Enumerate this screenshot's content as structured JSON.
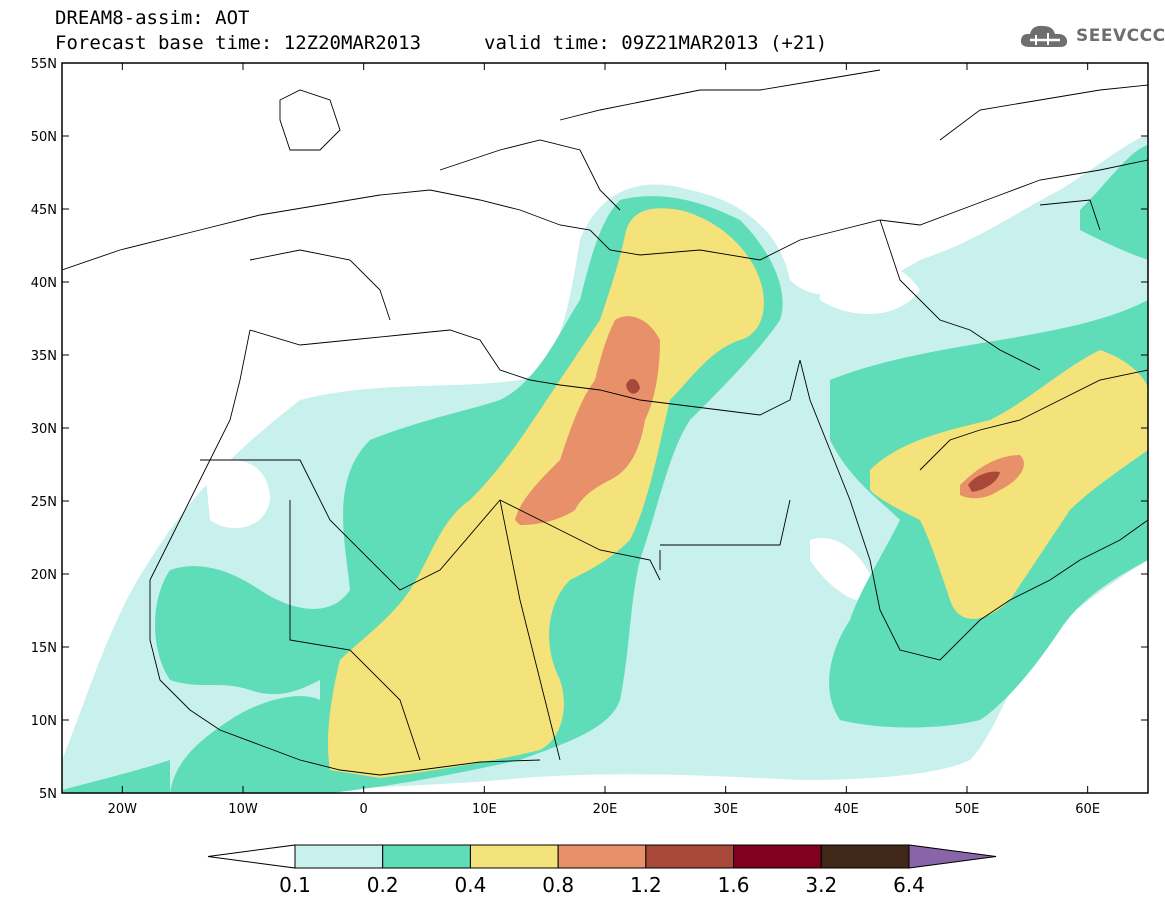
{
  "header": {
    "title": "DREAM8-assim: AOT",
    "base_time": "Forecast base time: 12Z20MAR2013",
    "valid_time": "valid time: 09Z21MAR2013 (+21)",
    "logo_text": "SEEVCCC"
  },
  "map": {
    "lon_range": [
      -25,
      65
    ],
    "lat_range": [
      5,
      55
    ],
    "lat_ticks": [
      {
        "value": 55,
        "label": "55N"
      },
      {
        "value": 50,
        "label": "50N"
      },
      {
        "value": 45,
        "label": "45N"
      },
      {
        "value": 40,
        "label": "40N"
      },
      {
        "value": 35,
        "label": "35N"
      },
      {
        "value": 30,
        "label": "30N"
      },
      {
        "value": 25,
        "label": "25N"
      },
      {
        "value": 20,
        "label": "20N"
      },
      {
        "value": 15,
        "label": "15N"
      },
      {
        "value": 10,
        "label": "10N"
      },
      {
        "value": 5,
        "label": "5N"
      }
    ],
    "lon_ticks": [
      {
        "value": -20,
        "label": "20W"
      },
      {
        "value": -10,
        "label": "10W"
      },
      {
        "value": 0,
        "label": "0"
      },
      {
        "value": 10,
        "label": "10E"
      },
      {
        "value": 20,
        "label": "20E"
      },
      {
        "value": 30,
        "label": "30E"
      },
      {
        "value": 40,
        "label": "40E"
      },
      {
        "value": 50,
        "label": "50E"
      },
      {
        "value": 60,
        "label": "60E"
      }
    ]
  },
  "colorbar": {
    "levels": [
      "0.1",
      "0.2",
      "0.4",
      "0.8",
      "1.2",
      "1.6",
      "3.2",
      "6.4"
    ],
    "colors": [
      "#ffffff",
      "#c8f0ec",
      "#5fdcb8",
      "#f4e27a",
      "#e8906a",
      "#a84838",
      "#800020",
      "#402818",
      "#8a64a8"
    ]
  },
  "legend_colors": {
    "c01": "#c8f0ec",
    "c02": "#5fdcb8",
    "c04": "#f4e27a",
    "c08": "#e8906a",
    "c12": "#a84838"
  }
}
